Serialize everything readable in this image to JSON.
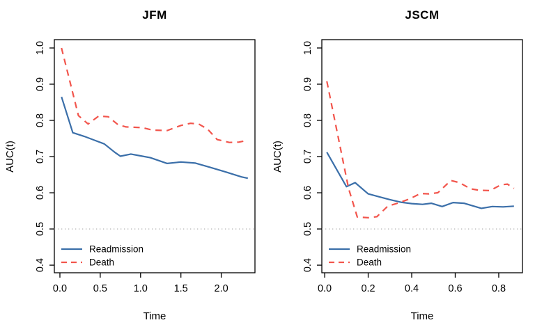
{
  "figure": {
    "background": "#ffffff",
    "colors": {
      "readmission": "#3b6fa9",
      "death": "#f2554c",
      "reference_line": "#aaaaaa",
      "axis": "#000000",
      "text": "#000000"
    }
  },
  "chart_data": [
    {
      "type": "line",
      "title": "JFM",
      "xlabel": "Time",
      "ylabel": "AUC(t)",
      "xlim": [
        -0.069,
        2.418
      ],
      "ylim": [
        0.379,
        1.023
      ],
      "xticks": [
        0.0,
        0.5,
        1.0,
        1.5,
        2.0
      ],
      "xtick_labels": [
        "0.0",
        "0.5",
        "1.0",
        "1.5",
        "2.0"
      ],
      "yticks": [
        0.4,
        0.5,
        0.6,
        0.7,
        0.8,
        0.9,
        1.0
      ],
      "ytick_labels": [
        "0.4",
        "0.5",
        "0.6",
        "0.7",
        "0.8",
        "0.9",
        "1.0"
      ],
      "grid": false,
      "reference_line_y": 0.5,
      "legend_position": "bottom-left",
      "legend": [
        "Readmission",
        "Death"
      ],
      "series": [
        {
          "name": "Readmission",
          "color": "#3b6fa9",
          "linetype": "solid",
          "points": [
            [
              0.02,
              0.865
            ],
            [
              0.16,
              0.766
            ],
            [
              0.3,
              0.756
            ],
            [
              0.42,
              0.746
            ],
            [
              0.55,
              0.735
            ],
            [
              0.68,
              0.712
            ],
            [
              0.75,
              0.701
            ],
            [
              0.88,
              0.707
            ],
            [
              1.0,
              0.702
            ],
            [
              1.12,
              0.697
            ],
            [
              1.33,
              0.681
            ],
            [
              1.5,
              0.685
            ],
            [
              1.68,
              0.682
            ],
            [
              1.85,
              0.671
            ],
            [
              2.05,
              0.658
            ],
            [
              2.25,
              0.644
            ],
            [
              2.33,
              0.64
            ]
          ]
        },
        {
          "name": "Death",
          "color": "#f2554c",
          "linetype": "dashed",
          "points": [
            [
              0.02,
              1.0
            ],
            [
              0.23,
              0.813
            ],
            [
              0.35,
              0.79
            ],
            [
              0.48,
              0.812
            ],
            [
              0.6,
              0.81
            ],
            [
              0.72,
              0.788
            ],
            [
              0.82,
              0.782
            ],
            [
              1.02,
              0.78
            ],
            [
              1.15,
              0.773
            ],
            [
              1.33,
              0.772
            ],
            [
              1.5,
              0.786
            ],
            [
              1.62,
              0.792
            ],
            [
              1.72,
              0.79
            ],
            [
              1.83,
              0.776
            ],
            [
              1.95,
              0.747
            ],
            [
              2.1,
              0.739
            ],
            [
              2.22,
              0.74
            ],
            [
              2.33,
              0.745
            ]
          ]
        }
      ]
    },
    {
      "type": "line",
      "title": "JSCM",
      "xlabel": "Time",
      "ylabel": "AUC(t)",
      "xlim": [
        -0.013,
        0.909
      ],
      "ylim": [
        0.379,
        1.023
      ],
      "xticks": [
        0.0,
        0.2,
        0.4,
        0.6,
        0.8
      ],
      "xtick_labels": [
        "0.0",
        "0.2",
        "0.4",
        "0.6",
        "0.8"
      ],
      "yticks": [
        0.4,
        0.5,
        0.6,
        0.7,
        0.8,
        0.9,
        1.0
      ],
      "ytick_labels": [
        "0.4",
        "0.5",
        "0.6",
        "0.7",
        "0.8",
        "0.9",
        "1.0"
      ],
      "grid": false,
      "reference_line_y": 0.5,
      "legend_position": "bottom-left",
      "legend": [
        "Readmission",
        "Death"
      ],
      "series": [
        {
          "name": "Readmission",
          "color": "#3b6fa9",
          "linetype": "solid",
          "points": [
            [
              0.01,
              0.712
            ],
            [
              0.1,
              0.617
            ],
            [
              0.14,
              0.628
            ],
            [
              0.2,
              0.597
            ],
            [
              0.25,
              0.589
            ],
            [
              0.3,
              0.581
            ],
            [
              0.35,
              0.574
            ],
            [
              0.4,
              0.57
            ],
            [
              0.45,
              0.568
            ],
            [
              0.49,
              0.571
            ],
            [
              0.54,
              0.562
            ],
            [
              0.59,
              0.573
            ],
            [
              0.64,
              0.571
            ],
            [
              0.72,
              0.557
            ],
            [
              0.77,
              0.562
            ],
            [
              0.82,
              0.561
            ],
            [
              0.87,
              0.563
            ]
          ]
        },
        {
          "name": "Death",
          "color": "#f2554c",
          "linetype": "dashed",
          "points": [
            [
              0.01,
              0.908
            ],
            [
              0.06,
              0.76
            ],
            [
              0.11,
              0.612
            ],
            [
              0.15,
              0.533
            ],
            [
              0.2,
              0.531
            ],
            [
              0.24,
              0.534
            ],
            [
              0.29,
              0.563
            ],
            [
              0.34,
              0.572
            ],
            [
              0.39,
              0.583
            ],
            [
              0.44,
              0.598
            ],
            [
              0.48,
              0.597
            ],
            [
              0.52,
              0.6
            ],
            [
              0.58,
              0.634
            ],
            [
              0.62,
              0.628
            ],
            [
              0.67,
              0.611
            ],
            [
              0.71,
              0.607
            ],
            [
              0.76,
              0.606
            ],
            [
              0.81,
              0.622
            ],
            [
              0.84,
              0.624
            ],
            [
              0.87,
              0.612
            ]
          ]
        }
      ]
    }
  ]
}
